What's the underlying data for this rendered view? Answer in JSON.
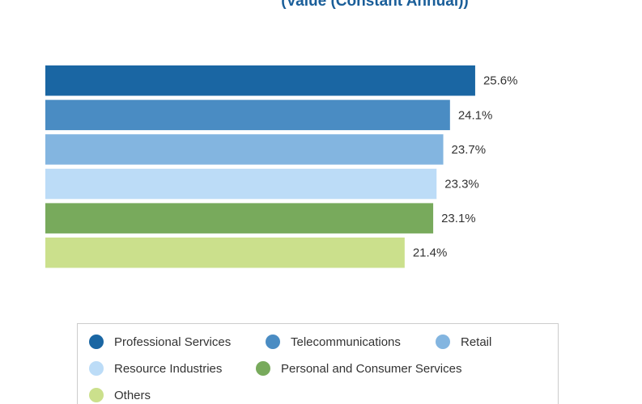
{
  "chart_data": {
    "type": "bar",
    "orientation": "horizontal",
    "title": "(Value (Constant Annual))",
    "categories": [
      "Professional Services",
      "Telecommunications",
      "Retail",
      "Resource Industries",
      "Personal and Consumer Services",
      "Others"
    ],
    "values": [
      25.6,
      24.1,
      23.7,
      23.3,
      23.1,
      21.4
    ],
    "value_labels": [
      "25.6%",
      "24.1%",
      "23.7%",
      "23.3%",
      "23.1%",
      "21.4%"
    ],
    "colors": [
      "#1a66a3",
      "#4a8cc3",
      "#83b5e0",
      "#bcdcf7",
      "#78aa5c",
      "#cbe08c"
    ],
    "legend": "bottom"
  }
}
